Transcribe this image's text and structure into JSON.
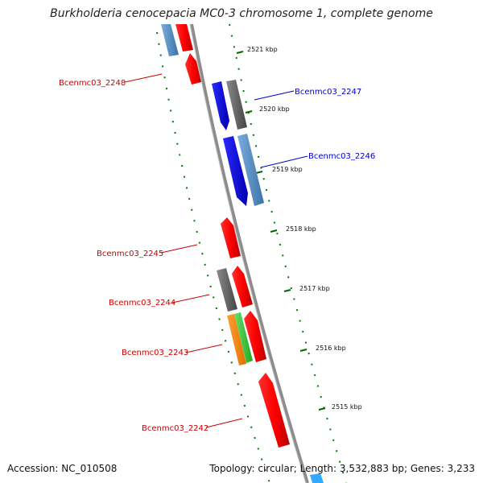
{
  "title": "Burkholderia cenocepacia MC0-3 chromosome 1, complete genome",
  "accession": "Accession: NC_010508",
  "summary": "Topology: circular; Length: 3,532,883 bp; Genes: 3,233",
  "kbp_labels": [
    "2521 kbp",
    "2520 kbp",
    "2519 kbp",
    "2518 kbp",
    "2517 kbp",
    "2516 kbp",
    "2515 kbp"
  ],
  "genes": [
    {
      "name": "Bcenmc03_2248",
      "strand": "reverse",
      "color": "#cc0000"
    },
    {
      "name": "Bcenmc03_2247",
      "strand": "forward",
      "color": "#0000cc"
    },
    {
      "name": "Bcenmc03_2246",
      "strand": "forward",
      "color": "#0000cc"
    },
    {
      "name": "Bcenmc03_2245",
      "strand": "reverse",
      "color": "#cc0000"
    },
    {
      "name": "Bcenmc03_2244",
      "strand": "reverse",
      "color": "#cc0000"
    },
    {
      "name": "Bcenmc03_2243",
      "strand": "reverse",
      "color": "#cc0000"
    },
    {
      "name": "Bcenmc03_2242",
      "strand": "reverse",
      "color": "#cc0000"
    }
  ],
  "colors": {
    "forward_cds": "#0000ee",
    "reverse_cds": "#ee0000",
    "backbone": "#888888",
    "tick": "#007700",
    "feature_steel": "#4a7fb5",
    "feature_gray": "#555555",
    "feature_orange": "#ff8c00",
    "feature_green": "#33cc33"
  }
}
